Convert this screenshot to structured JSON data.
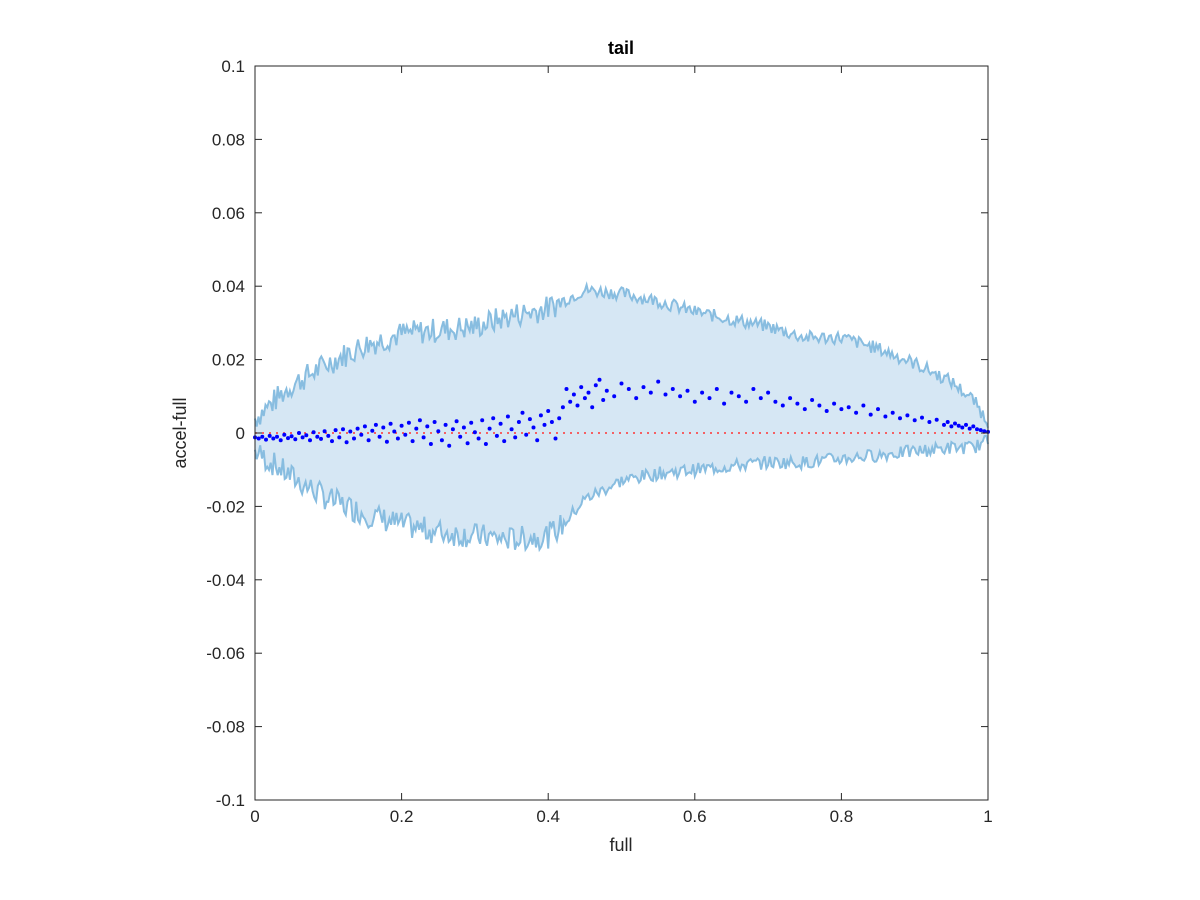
{
  "chart_data": {
    "type": "scatter",
    "title": "tail",
    "xlabel": "full",
    "ylabel": "accel-full",
    "xlim": [
      0,
      1
    ],
    "ylim": [
      -0.1,
      0.1
    ],
    "xticks": [
      "0",
      "0.2",
      "0.4",
      "0.6",
      "0.8",
      "1"
    ],
    "xtick_values": [
      0,
      0.2,
      0.4,
      0.6,
      0.8,
      1
    ],
    "yticks": [
      "-0.1",
      "-0.08",
      "-0.06",
      "-0.04",
      "-0.02",
      "0",
      "0.02",
      "0.04",
      "0.06",
      "0.08",
      "0.1"
    ],
    "ytick_values": [
      -0.1,
      -0.08,
      -0.06,
      -0.04,
      -0.02,
      0,
      0.02,
      0.04,
      0.06,
      0.08,
      0.1
    ],
    "grid": false,
    "reference_line": {
      "y": 0,
      "style": "dotted",
      "color": "#ff3333"
    },
    "band": {
      "name": "envelope",
      "fill_color": "#d6e7f4",
      "line_color": "#88bde0",
      "x": [
        0,
        0.05,
        0.1,
        0.15,
        0.2,
        0.25,
        0.3,
        0.35,
        0.4,
        0.42,
        0.45,
        0.5,
        0.55,
        0.6,
        0.65,
        0.7,
        0.75,
        0.8,
        0.85,
        0.9,
        0.95,
        0.98,
        1.0
      ],
      "upper": [
        0.004,
        0.013,
        0.019,
        0.024,
        0.027,
        0.028,
        0.029,
        0.032,
        0.034,
        0.036,
        0.039,
        0.038,
        0.036,
        0.033,
        0.031,
        0.029,
        0.026,
        0.026,
        0.023,
        0.019,
        0.014,
        0.009,
        0.003
      ],
      "lower": [
        -0.005,
        -0.012,
        -0.018,
        -0.022,
        -0.025,
        -0.027,
        -0.028,
        -0.029,
        -0.028,
        -0.025,
        -0.018,
        -0.013,
        -0.011,
        -0.01,
        -0.009,
        -0.008,
        -0.008,
        -0.007,
        -0.006,
        -0.005,
        -0.004,
        -0.004,
        -0.002
      ]
    },
    "series": [
      {
        "color": "#0000ff",
        "points": [
          [
            0.0,
            -0.0012
          ],
          [
            0.005,
            -0.0015
          ],
          [
            0.01,
            -0.001
          ],
          [
            0.015,
            -0.0018
          ],
          [
            0.02,
            -0.0008
          ],
          [
            0.025,
            -0.0015
          ],
          [
            0.03,
            -0.001
          ],
          [
            0.035,
            -0.002
          ],
          [
            0.04,
            -0.0005
          ],
          [
            0.045,
            -0.0014
          ],
          [
            0.05,
            -0.0009
          ],
          [
            0.055,
            -0.0017
          ],
          [
            0.06,
            0.0
          ],
          [
            0.065,
            -0.0012
          ],
          [
            0.07,
            -0.0006
          ],
          [
            0.075,
            -0.002
          ],
          [
            0.08,
            0.0002
          ],
          [
            0.085,
            -0.001
          ],
          [
            0.09,
            -0.0016
          ],
          [
            0.095,
            0.0005
          ],
          [
            0.1,
            -0.0008
          ],
          [
            0.105,
            -0.0022
          ],
          [
            0.11,
            0.0008
          ],
          [
            0.115,
            -0.0012
          ],
          [
            0.12,
            0.001
          ],
          [
            0.125,
            -0.0025
          ],
          [
            0.13,
            0.0004
          ],
          [
            0.135,
            -0.0015
          ],
          [
            0.14,
            0.0012
          ],
          [
            0.145,
            -0.0005
          ],
          [
            0.15,
            0.0018
          ],
          [
            0.155,
            -0.002
          ],
          [
            0.16,
            0.0006
          ],
          [
            0.165,
            0.0022
          ],
          [
            0.17,
            -0.001
          ],
          [
            0.175,
            0.0015
          ],
          [
            0.18,
            -0.0024
          ],
          [
            0.185,
            0.0025
          ],
          [
            0.19,
            0.0004
          ],
          [
            0.195,
            -0.0015
          ],
          [
            0.2,
            0.002
          ],
          [
            0.205,
            -0.0005
          ],
          [
            0.21,
            0.0028
          ],
          [
            0.215,
            -0.0022
          ],
          [
            0.22,
            0.0012
          ],
          [
            0.225,
            0.0035
          ],
          [
            0.23,
            -0.0012
          ],
          [
            0.235,
            0.0018
          ],
          [
            0.24,
            -0.003
          ],
          [
            0.245,
            0.003
          ],
          [
            0.25,
            0.0005
          ],
          [
            0.255,
            -0.002
          ],
          [
            0.26,
            0.0022
          ],
          [
            0.265,
            -0.0035
          ],
          [
            0.27,
            0.001
          ],
          [
            0.275,
            0.0032
          ],
          [
            0.28,
            -0.001
          ],
          [
            0.285,
            0.0015
          ],
          [
            0.29,
            -0.0028
          ],
          [
            0.295,
            0.0028
          ],
          [
            0.3,
            0.0002
          ],
          [
            0.305,
            -0.0015
          ],
          [
            0.31,
            0.0035
          ],
          [
            0.315,
            -0.003
          ],
          [
            0.32,
            0.0012
          ],
          [
            0.325,
            0.004
          ],
          [
            0.33,
            -0.0008
          ],
          [
            0.335,
            0.0025
          ],
          [
            0.34,
            -0.0022
          ],
          [
            0.345,
            0.0045
          ],
          [
            0.35,
            0.001
          ],
          [
            0.355,
            -0.0012
          ],
          [
            0.36,
            0.003
          ],
          [
            0.365,
            0.0055
          ],
          [
            0.37,
            -0.0005
          ],
          [
            0.375,
            0.0038
          ],
          [
            0.38,
            0.0015
          ],
          [
            0.385,
            -0.002
          ],
          [
            0.39,
            0.0048
          ],
          [
            0.395,
            0.0022
          ],
          [
            0.4,
            0.006
          ],
          [
            0.405,
            0.003
          ],
          [
            0.41,
            -0.0015
          ],
          [
            0.415,
            0.004
          ],
          [
            0.42,
            0.007
          ],
          [
            0.425,
            0.012
          ],
          [
            0.43,
            0.0085
          ],
          [
            0.435,
            0.0105
          ],
          [
            0.44,
            0.0075
          ],
          [
            0.445,
            0.0125
          ],
          [
            0.45,
            0.0095
          ],
          [
            0.455,
            0.011
          ],
          [
            0.46,
            0.007
          ],
          [
            0.465,
            0.013
          ],
          [
            0.47,
            0.0145
          ],
          [
            0.475,
            0.009
          ],
          [
            0.48,
            0.0115
          ],
          [
            0.49,
            0.01
          ],
          [
            0.5,
            0.0135
          ],
          [
            0.51,
            0.012
          ],
          [
            0.52,
            0.0095
          ],
          [
            0.53,
            0.0125
          ],
          [
            0.54,
            0.011
          ],
          [
            0.55,
            0.014
          ],
          [
            0.56,
            0.0105
          ],
          [
            0.57,
            0.012
          ],
          [
            0.58,
            0.01
          ],
          [
            0.59,
            0.0115
          ],
          [
            0.6,
            0.0085
          ],
          [
            0.61,
            0.011
          ],
          [
            0.62,
            0.0095
          ],
          [
            0.63,
            0.012
          ],
          [
            0.64,
            0.008
          ],
          [
            0.65,
            0.011
          ],
          [
            0.66,
            0.01
          ],
          [
            0.67,
            0.0085
          ],
          [
            0.68,
            0.012
          ],
          [
            0.69,
            0.0095
          ],
          [
            0.7,
            0.011
          ],
          [
            0.71,
            0.0085
          ],
          [
            0.72,
            0.0075
          ],
          [
            0.73,
            0.0095
          ],
          [
            0.74,
            0.008
          ],
          [
            0.75,
            0.0065
          ],
          [
            0.76,
            0.009
          ],
          [
            0.77,
            0.0075
          ],
          [
            0.78,
            0.006
          ],
          [
            0.79,
            0.008
          ],
          [
            0.8,
            0.0065
          ],
          [
            0.81,
            0.007
          ],
          [
            0.82,
            0.0055
          ],
          [
            0.83,
            0.0075
          ],
          [
            0.84,
            0.005
          ],
          [
            0.85,
            0.0065
          ],
          [
            0.86,
            0.0045
          ],
          [
            0.87,
            0.0055
          ],
          [
            0.88,
            0.004
          ],
          [
            0.89,
            0.0048
          ],
          [
            0.9,
            0.0035
          ],
          [
            0.91,
            0.0042
          ],
          [
            0.92,
            0.003
          ],
          [
            0.93,
            0.0036
          ],
          [
            0.94,
            0.0022
          ],
          [
            0.945,
            0.003
          ],
          [
            0.95,
            0.0018
          ],
          [
            0.955,
            0.0026
          ],
          [
            0.96,
            0.002
          ],
          [
            0.965,
            0.0015
          ],
          [
            0.97,
            0.0022
          ],
          [
            0.975,
            0.0012
          ],
          [
            0.98,
            0.0018
          ],
          [
            0.985,
            0.001
          ],
          [
            0.99,
            0.0008
          ],
          [
            0.995,
            0.0005
          ],
          [
            1.0,
            0.0003
          ]
        ]
      }
    ]
  }
}
